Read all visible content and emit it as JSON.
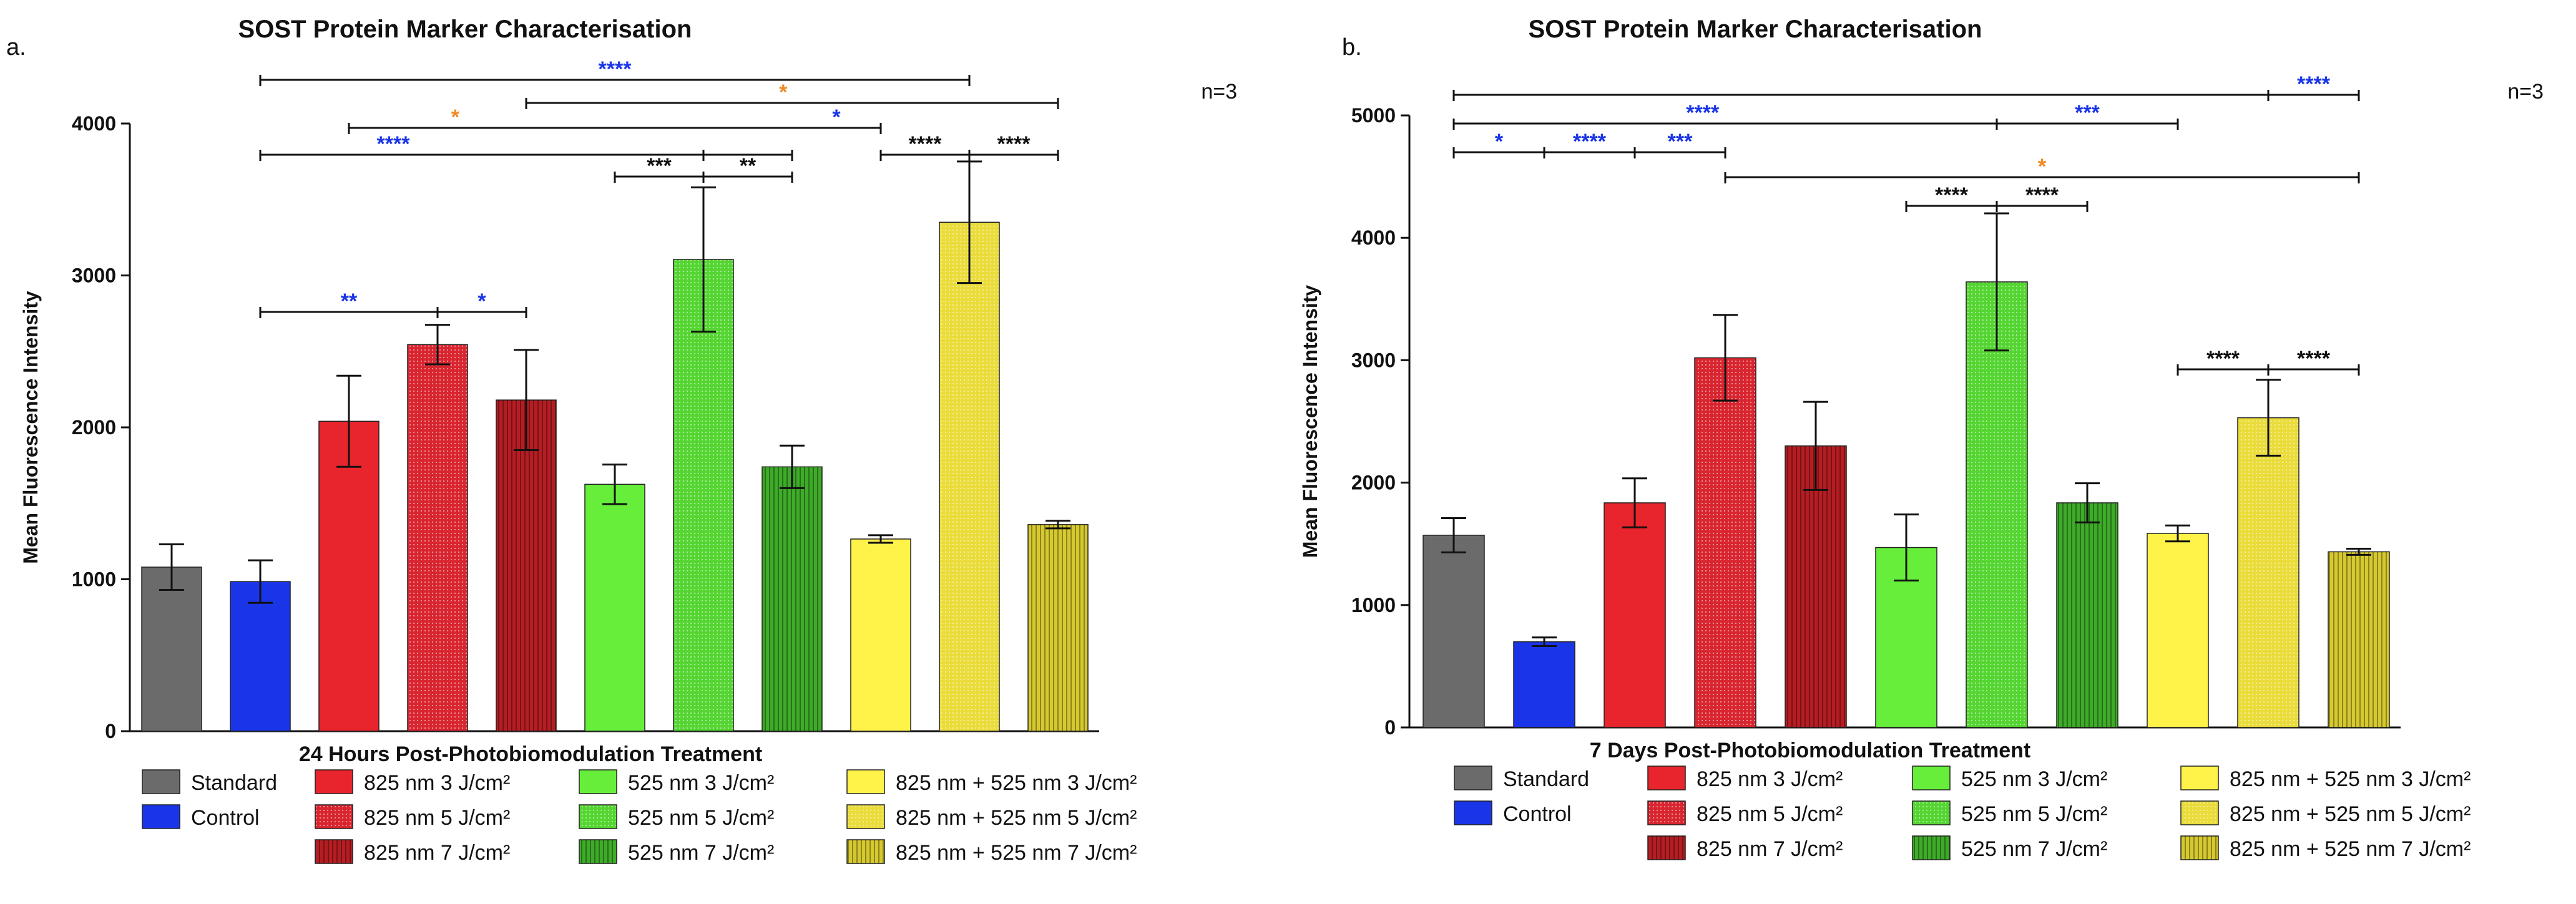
{
  "chart_data": [
    {
      "type": "bar",
      "panel_label": "a.",
      "title": "SOST Protein Marker Characterisation",
      "xlabel": "24 Hours Post-Photobiomodulation Treatment",
      "ylabel": "Mean Fluorescence Intensity",
      "n_label": "n=3",
      "ylim": [
        0,
        4000
      ],
      "yticks": [
        "0",
        "1000",
        "2000",
        "3000",
        "4000"
      ],
      "categories": [
        "Standard",
        "Control",
        "825 nm 3 J/cm²",
        "825 nm 5 J/cm²",
        "825 nm 7 J/cm²",
        "525 nm 3 J/cm²",
        "525 nm 5 J/cm²",
        "525 nm 7 J/cm²",
        "825 nm + 525 nm 3 J/cm²",
        "825 nm + 525 nm 5 J/cm²",
        "825 nm + 525 nm 7 J/cm²"
      ],
      "values": [
        1080,
        985,
        2040,
        2545,
        2180,
        1625,
        3105,
        1740,
        1265,
        3350,
        1360
      ],
      "errors": [
        150,
        140,
        300,
        130,
        330,
        130,
        475,
        140,
        25,
        400,
        25
      ],
      "significance": [
        {
          "from": 1,
          "to": 9,
          "level": 1,
          "marks": [
            {
              "at": 5,
              "text": "****",
              "color": "blue"
            }
          ]
        },
        {
          "from": 4,
          "to": 10,
          "level": 2,
          "marks": [
            {
              "at": 6.9,
              "text": "*",
              "color": "orange"
            }
          ]
        },
        {
          "from": 2,
          "to": 8,
          "level": 3,
          "marks": [
            {
              "at": 3.2,
              "text": "*",
              "color": "orange"
            },
            {
              "at": 7.5,
              "text": "*",
              "color": "blue"
            }
          ]
        },
        {
          "from": 1,
          "to": 7,
          "level": 4,
          "marks": [
            {
              "at": 2.5,
              "text": "****",
              "color": "blue"
            }
          ],
          "ticks": [
            6
          ]
        },
        {
          "from": 8,
          "to": 10,
          "level": 4,
          "marks": [
            {
              "at": 8.5,
              "text": "****",
              "color": "black"
            },
            {
              "at": 9.5,
              "text": "****",
              "color": "black"
            }
          ],
          "ticks": [
            9
          ]
        },
        {
          "from": 5,
          "to": 7,
          "level": 5,
          "marks": [
            {
              "at": 5.5,
              "text": "***",
              "color": "black"
            },
            {
              "at": 6.5,
              "text": "**",
              "color": "black"
            }
          ],
          "ticks": [
            6
          ]
        },
        {
          "from": 1,
          "to": 4,
          "level": 6,
          "marks": [
            {
              "at": 2,
              "text": "**",
              "color": "blue"
            },
            {
              "at": 3.5,
              "text": "*",
              "color": "blue"
            }
          ],
          "ticks": [
            3
          ]
        }
      ]
    },
    {
      "type": "bar",
      "panel_label": "b.",
      "title": "SOST Protein Marker Characterisation",
      "xlabel": "7 Days Post-Photobiomodulation Treatment",
      "ylabel": "Mean Fluorescence Intensity",
      "n_label": "n=3",
      "ylim": [
        0,
        5000
      ],
      "yticks": [
        "0",
        "1000",
        "2000",
        "3000",
        "4000",
        "5000"
      ],
      "categories": [
        "Standard",
        "Control",
        "825 nm 3 J/cm²",
        "825 nm 5 J/cm²",
        "825 nm 7 J/cm²",
        "525 nm 3 J/cm²",
        "525 nm 5 J/cm²",
        "525 nm 7 J/cm²",
        "825 nm + 525 nm 3 J/cm²",
        "825 nm + 525 nm 5 J/cm²",
        "825 nm + 525 nm 7 J/cm²"
      ],
      "values": [
        1570,
        700,
        1835,
        3020,
        2300,
        1470,
        3640,
        1835,
        1585,
        2530,
        1435
      ],
      "errors": [
        140,
        35,
        200,
        350,
        360,
        270,
        560,
        160,
        65,
        310,
        25
      ],
      "significance": [
        {
          "from": 0,
          "to": 10,
          "level": 1,
          "marks": [
            {
              "at": 9.5,
              "text": "****",
              "color": "blue"
            }
          ],
          "ticks": [
            9
          ]
        },
        {
          "from": 0,
          "to": 6,
          "level": 2,
          "marks": [
            {
              "at": 2.75,
              "text": "****",
              "color": "blue"
            }
          ]
        },
        {
          "from": 6,
          "to": 8,
          "level": 2,
          "marks": [
            {
              "at": 7,
              "text": "***",
              "color": "blue"
            }
          ]
        },
        {
          "from": 0,
          "to": 3,
          "level": 3,
          "marks": [
            {
              "at": 0.5,
              "text": "*",
              "color": "blue"
            },
            {
              "at": 1.5,
              "text": "****",
              "color": "blue"
            },
            {
              "at": 2.5,
              "text": "***",
              "color": "blue"
            }
          ],
          "ticks": [
            1,
            2
          ]
        },
        {
          "from": 3,
          "to": 10,
          "level": 4,
          "marks": [
            {
              "at": 6.5,
              "text": "*",
              "color": "orange"
            }
          ]
        },
        {
          "from": 5,
          "to": 7,
          "level": 5,
          "marks": [
            {
              "at": 5.5,
              "text": "****",
              "color": "black"
            },
            {
              "at": 6.5,
              "text": "****",
              "color": "black"
            }
          ],
          "ticks": [
            6
          ]
        },
        {
          "from": 8,
          "to": 10,
          "level": 6,
          "marks": [
            {
              "at": 8.5,
              "text": "****",
              "color": "black"
            },
            {
              "at": 9.5,
              "text": "****",
              "color": "black"
            }
          ],
          "ticks": [
            9
          ]
        }
      ]
    }
  ],
  "legend": [
    {
      "label": "Standard",
      "color": "#6b6b6b",
      "pattern": "solid"
    },
    {
      "label": "Control",
      "color": "#1a35e8",
      "pattern": "solid"
    },
    {
      "label": "825 nm 3 J/cm²",
      "color": "#e8242c",
      "pattern": "solid"
    },
    {
      "label": "825 nm 5 J/cm²",
      "color": "#d8252f",
      "pattern": "dots"
    },
    {
      "label": "825 nm 7 J/cm²",
      "color": "#b51d22",
      "pattern": "vlines"
    },
    {
      "label": "525 nm 3 J/cm²",
      "color": "#66ee3a",
      "pattern": "solid"
    },
    {
      "label": "525 nm 5 J/cm²",
      "color": "#55d532",
      "pattern": "dots"
    },
    {
      "label": "525 nm 7 J/cm²",
      "color": "#3eab29",
      "pattern": "vlines"
    },
    {
      "label": "825 nm + 525 nm 3 J/cm²",
      "color": "#fff34a",
      "pattern": "solid"
    },
    {
      "label": "825 nm + 525 nm 5 J/cm²",
      "color": "#eadc3a",
      "pattern": "dots"
    },
    {
      "label": "825 nm + 525 nm 7 J/cm²",
      "color": "#d6c92f",
      "pattern": "vlines"
    }
  ],
  "colors": {
    "blue": "#1a35e8",
    "orange": "#f08a24",
    "black": "#111111"
  }
}
